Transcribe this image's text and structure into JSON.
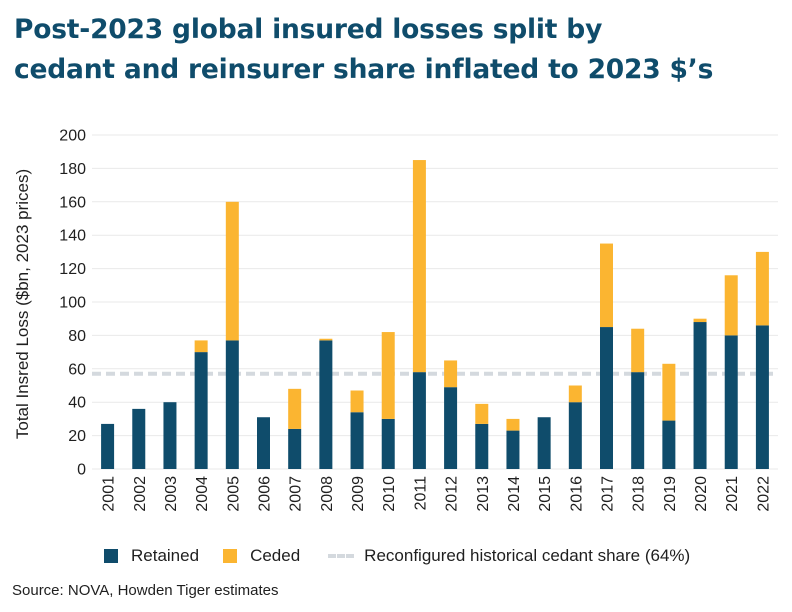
{
  "title_line1": "Post-2023 global insured losses split by",
  "title_line2": "cedant and reinsurer share inflated to 2023 $’s",
  "source": "Source: NOVA, Howden Tiger estimates",
  "legend": {
    "retained": "Retained",
    "ceded": "Ceded",
    "reference": "Reconfigured historical cedant share (64%)"
  },
  "colors": {
    "retained": "#0f4c6b",
    "ceded": "#fbb531",
    "reference": "#d4d9de",
    "title": "#0f4c6b"
  },
  "chart_data": {
    "type": "bar",
    "stacked": true,
    "ylabel": "Total Insred Loss ($bn, 2023 prices)",
    "xlabel": "",
    "ylim": [
      0,
      200
    ],
    "yticks": [
      0,
      20,
      40,
      60,
      80,
      100,
      120,
      140,
      160,
      180,
      200
    ],
    "grid": true,
    "legend_position": "bottom",
    "categories": [
      "2001",
      "2002",
      "2003",
      "2004",
      "2005",
      "2006",
      "2007",
      "2008",
      "2009",
      "2010",
      "2011",
      "2012",
      "2013",
      "2014",
      "2015",
      "2016",
      "2017",
      "2018",
      "2019",
      "2020",
      "2021",
      "2022"
    ],
    "series": [
      {
        "name": "Retained",
        "values": [
          27,
          36,
          40,
          70,
          77,
          31,
          24,
          77,
          34,
          30,
          58,
          49,
          27,
          23,
          31,
          40,
          85,
          58,
          29,
          88,
          80,
          86
        ]
      },
      {
        "name": "Ceded",
        "values": [
          0,
          0,
          0,
          7,
          83,
          0,
          24,
          1,
          13,
          52,
          127,
          16,
          12,
          7,
          0,
          10,
          50,
          26,
          34,
          2,
          36,
          44
        ]
      }
    ],
    "reference_line": {
      "name": "Reconfigured historical cedant share (64%)",
      "value": 57
    }
  }
}
